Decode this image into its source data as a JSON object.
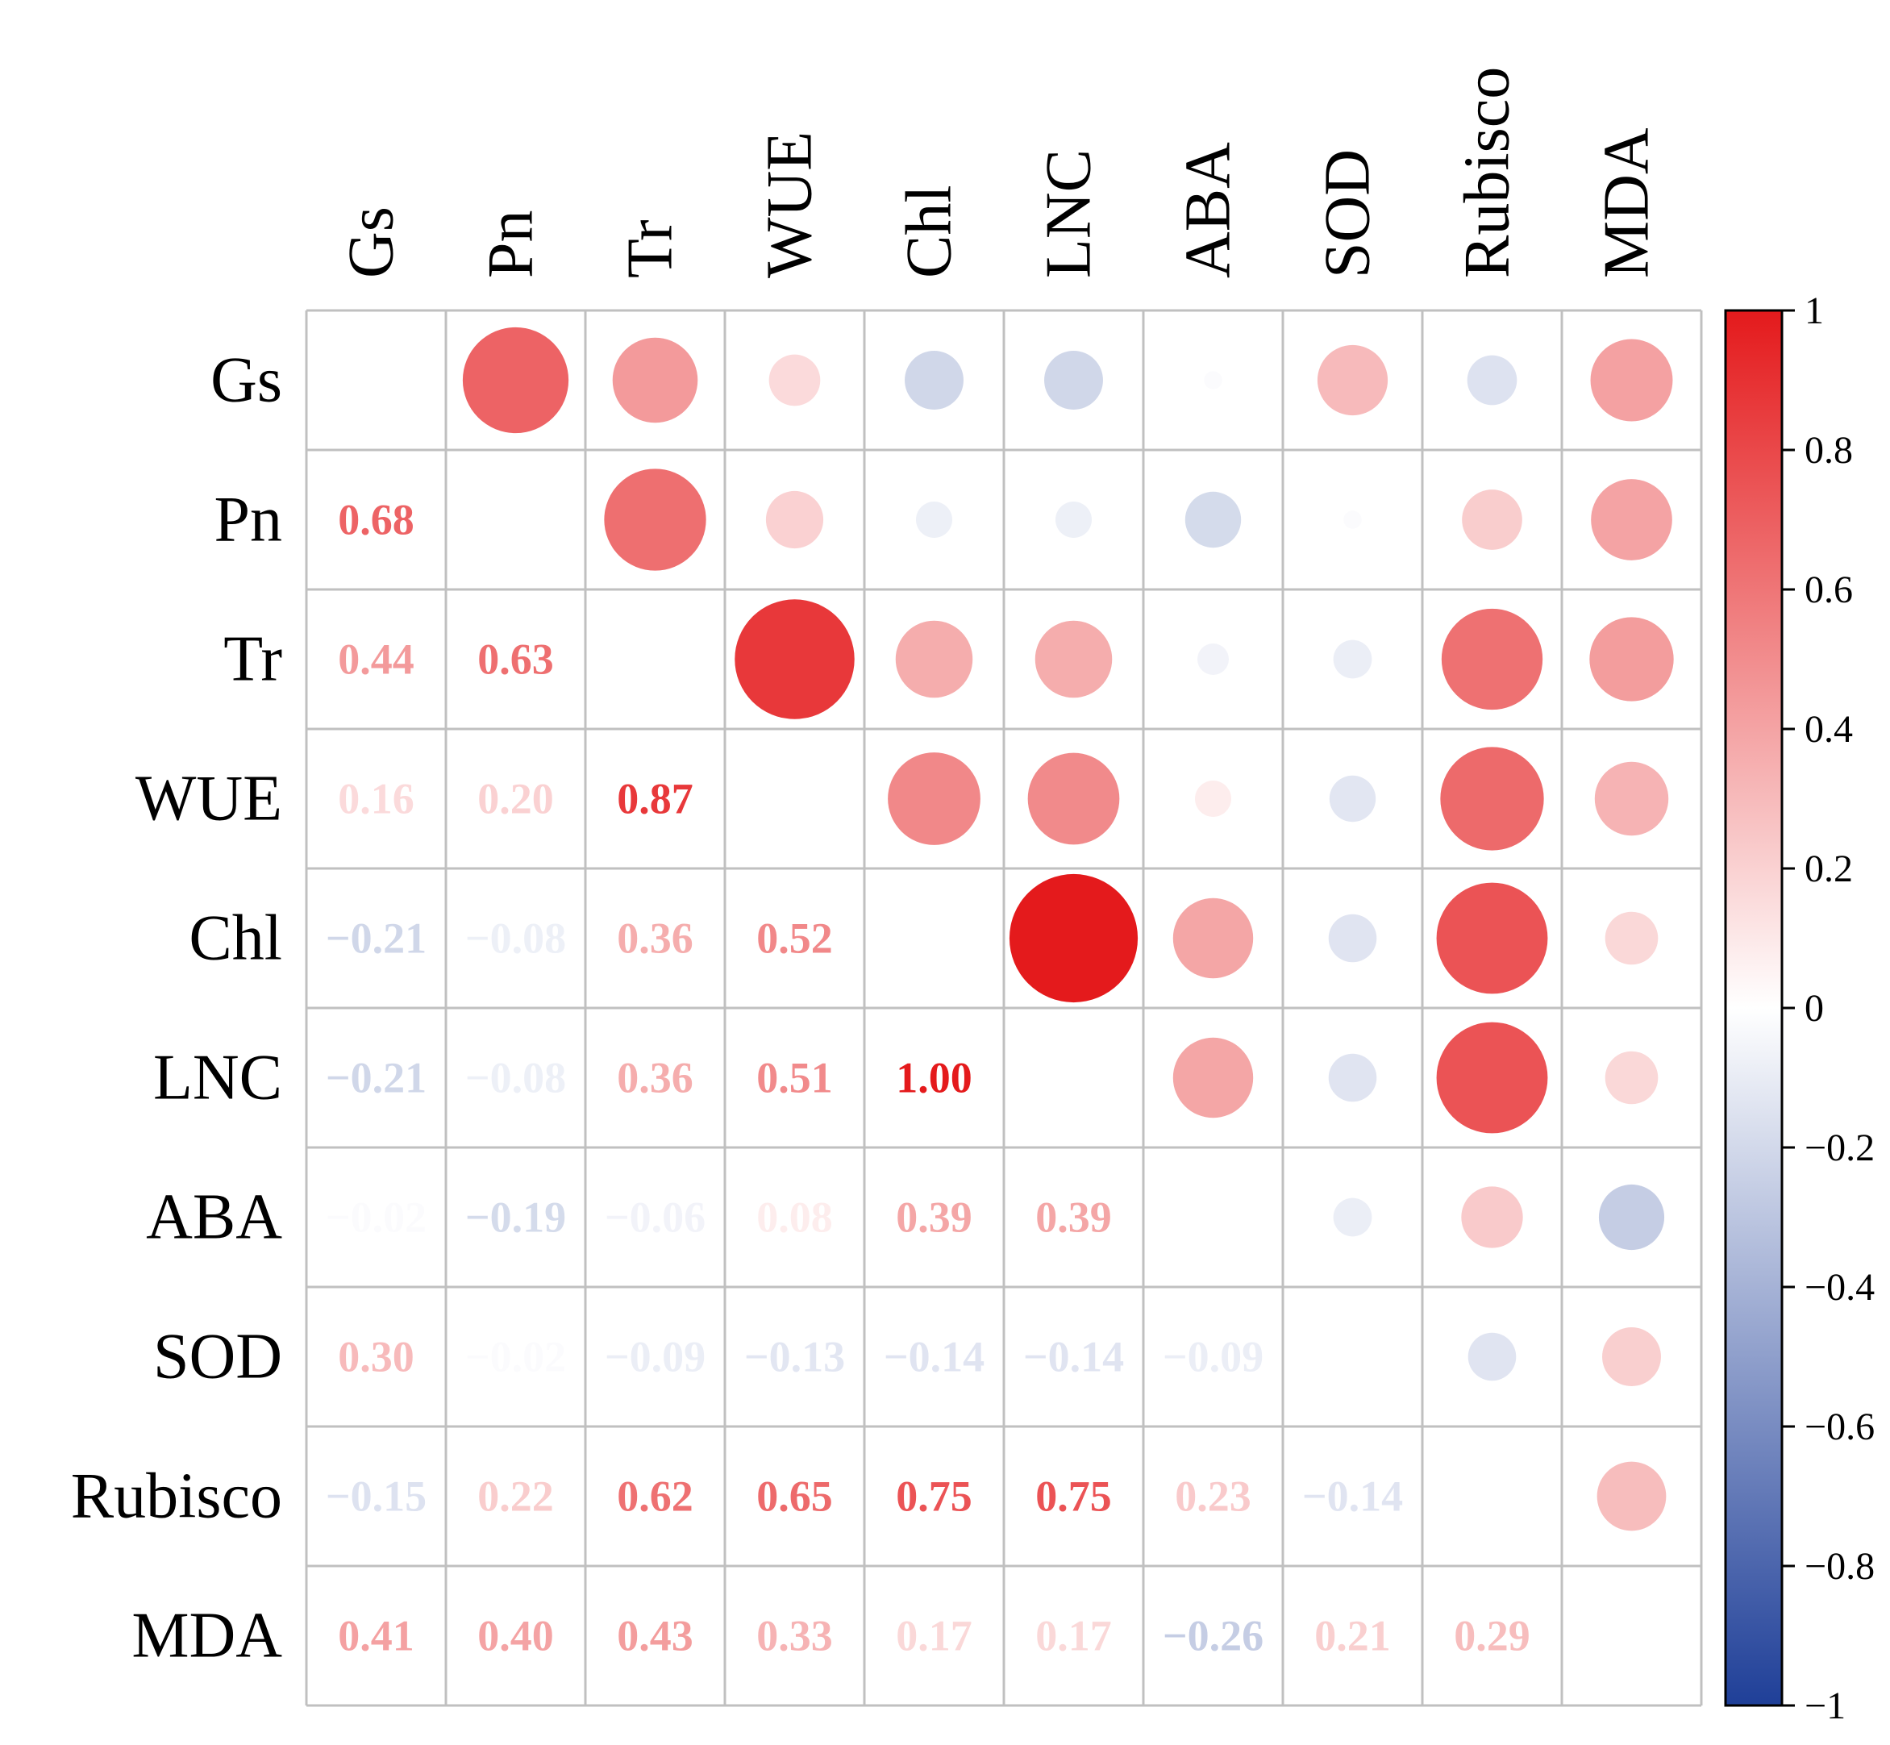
{
  "chart_data": {
    "type": "heatmap",
    "title": "",
    "variables": [
      "Gs",
      "Pn",
      "Tr",
      "WUE",
      "Chl",
      "LNC",
      "ABA",
      "SOD",
      "Rubisco",
      "MDA"
    ],
    "lower_labels": [
      [
        "",
        "",
        "",
        "",
        "",
        "",
        "",
        "",
        "",
        ""
      ],
      [
        "0.68",
        "",
        "",
        "",
        "",
        "",
        "",
        "",
        "",
        ""
      ],
      [
        "0.44",
        "0.63",
        "",
        "",
        "",
        "",
        "",
        "",
        "",
        ""
      ],
      [
        "0.16",
        "0.20",
        "0.87",
        "",
        "",
        "",
        "",
        "",
        "",
        ""
      ],
      [
        "−0.21",
        "−0.08",
        "0.36",
        "0.52",
        "",
        "",
        "",
        "",
        "",
        ""
      ],
      [
        "−0.21",
        "−0.08",
        "0.36",
        "0.51",
        "1.00",
        "",
        "",
        "",
        "",
        ""
      ],
      [
        "−0.02",
        "−0.19",
        "−0.06",
        "0.08",
        "0.39",
        "0.39",
        "",
        "",
        "",
        ""
      ],
      [
        "0.30",
        "−0.02",
        "−0.09",
        "−0.13",
        "−0.14",
        "−0.14",
        "−0.09",
        "",
        "",
        ""
      ],
      [
        "−0.15",
        "0.22",
        "0.62",
        "0.65",
        "0.75",
        "0.75",
        "0.23",
        "−0.14",
        "",
        ""
      ],
      [
        "0.41",
        "0.40",
        "0.43",
        "0.33",
        "0.17",
        "0.17",
        "−0.26",
        "0.21",
        "0.29",
        ""
      ]
    ],
    "matrix": [
      [
        null,
        0.68,
        0.44,
        0.16,
        -0.21,
        -0.21,
        -0.02,
        0.3,
        -0.15,
        0.41
      ],
      [
        0.68,
        null,
        0.63,
        0.2,
        -0.08,
        -0.08,
        -0.19,
        -0.02,
        0.22,
        0.4
      ],
      [
        0.44,
        0.63,
        null,
        0.87,
        0.36,
        0.36,
        -0.06,
        -0.09,
        0.62,
        0.43
      ],
      [
        0.16,
        0.2,
        0.87,
        null,
        0.52,
        0.51,
        0.08,
        -0.13,
        0.65,
        0.33
      ],
      [
        -0.21,
        -0.08,
        0.36,
        0.52,
        null,
        1.0,
        0.39,
        -0.14,
        0.75,
        0.17
      ],
      [
        -0.21,
        -0.08,
        0.36,
        0.51,
        1.0,
        null,
        0.39,
        -0.14,
        0.75,
        0.17
      ],
      [
        -0.02,
        -0.19,
        -0.06,
        0.08,
        0.39,
        0.39,
        null,
        -0.09,
        0.23,
        -0.26
      ],
      [
        0.3,
        -0.02,
        -0.09,
        -0.13,
        -0.14,
        -0.14,
        -0.09,
        null,
        -0.14,
        0.21
      ],
      [
        -0.15,
        0.22,
        0.62,
        0.65,
        0.75,
        0.75,
        0.23,
        -0.14,
        null,
        0.29
      ],
      [
        0.41,
        0.4,
        0.43,
        0.33,
        0.17,
        0.17,
        -0.26,
        0.21,
        0.29,
        null
      ]
    ],
    "lower_triangle": "numbers",
    "upper_triangle": "circles",
    "diagonal": "blank",
    "color_scale": {
      "min": -1,
      "max": 1,
      "low_color": "#1f3f98",
      "mid_color": "#ffffff",
      "high_color": "#e41a1c",
      "ticks": [
        1,
        0.8,
        0.6,
        0.4,
        0.2,
        0,
        -0.2,
        -0.4,
        -0.6,
        -0.8,
        -1
      ],
      "tick_labels": [
        "1",
        "0.8",
        "0.6",
        "0.4",
        "0.2",
        "0",
        "−0.2",
        "−0.4",
        "−0.6",
        "−0.8",
        "−1"
      ]
    },
    "grid_color": "#c0c0c0",
    "legend_position": "right"
  }
}
